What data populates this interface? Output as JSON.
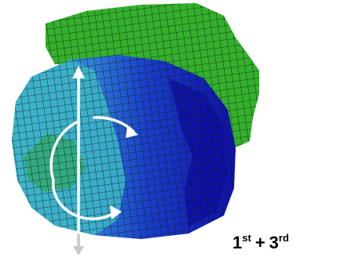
{
  "label": {
    "first": "1",
    "first_suffix": "st",
    "plus": "+",
    "second": "3",
    "second_suffix": "rd"
  }
}
